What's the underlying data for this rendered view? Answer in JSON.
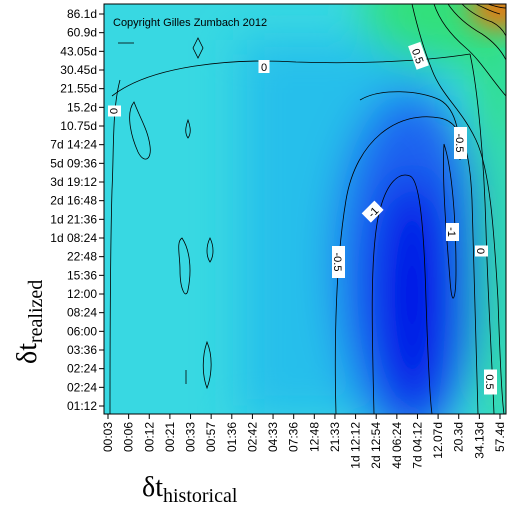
{
  "chart_data": {
    "type": "heatmap",
    "copyright": "Copyright Gilles Zumbach 2012",
    "xlabel": {
      "symbol": "δt",
      "subscript": "historical"
    },
    "ylabel": {
      "symbol": "δt",
      "subscript": "realized"
    },
    "x_ticks": [
      "00:03",
      "00:06",
      "00:12",
      "00:21",
      "00:33",
      "00:57",
      "01:36",
      "02:42",
      "04:33",
      "07:36",
      "12:48",
      "21:33",
      "1d 12:12",
      "2d 12:54",
      "4d 06:24",
      "7d 04:12",
      "12.07d",
      "20.3d",
      "34.13d",
      "57.4d"
    ],
    "y_ticks": [
      "86.1d",
      "60.9d",
      "43.05d",
      "30.45d",
      "21.55d",
      "15.2d",
      "10.75d",
      "7d 14:24",
      "5d 09:36",
      "3d 19:12",
      "2d 16:48",
      "1d 21:36",
      "1d 08:24",
      "22:48",
      "15:36",
      "12:00",
      "08:24",
      "06:00",
      "03:36",
      "02:24",
      "02:24",
      "01:12"
    ],
    "contour_levels": [
      -1,
      -0.5,
      0,
      0.5
    ],
    "contour_labels": [
      {
        "text": "0",
        "rot": 0
      },
      {
        "text": "0",
        "rot": 90
      },
      {
        "text": "-0.5",
        "rot": 90
      },
      {
        "text": "-1",
        "rot": -45
      },
      {
        "text": "-0.5",
        "rot": 90
      },
      {
        "text": "-1",
        "rot": 90
      },
      {
        "text": "0",
        "rot": 90
      },
      {
        "text": "0.5",
        "rot": 70
      },
      {
        "text": "0.5",
        "rot": 90
      }
    ],
    "colors": {
      "min": "#0010e6",
      "low": "#1e64f0",
      "mid": "#22bcec",
      "zero": "#38d8e2",
      "high": "#33e07a",
      "peak": "#ff6a00"
    },
    "grid": false
  }
}
